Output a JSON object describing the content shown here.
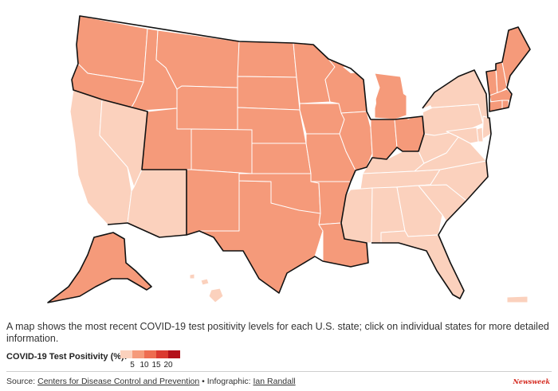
{
  "caption": "A map shows the most recent COVID-19 test positivity levels for each U.S. state; click on individual states for more detailed information.",
  "legend": {
    "title": "COVID-19 Test Positivity (%):",
    "colors": [
      "#fbd1bd",
      "#f59a7a",
      "#ee6d51",
      "#db3a30",
      "#b4111a"
    ],
    "ticks": [
      "5",
      "10",
      "15",
      "20"
    ]
  },
  "source": {
    "prefix": "Source: ",
    "cdc_link": "Centers for Disease Control and Prevention",
    "separator": " • Infographic: ",
    "author_link": "Ian Randall"
  },
  "brand": "Newsweek",
  "map": {
    "states": {
      "WA": "medium",
      "OR": "medium",
      "ID": "medium",
      "MT": "medium",
      "WY": "medium",
      "ND": "medium",
      "SD": "medium",
      "NE": "medium",
      "KS": "medium",
      "UT": "medium",
      "CO": "medium",
      "NM": "medium",
      "TX": "medium",
      "OK": "medium",
      "AR": "medium",
      "LA": "medium",
      "MO": "medium",
      "IA": "medium",
      "MN": "medium",
      "WI": "medium",
      "IL": "medium",
      "IN": "medium",
      "OH": "medium",
      "MI": "medium",
      "ME": "medium",
      "NH": "medium",
      "VT": "medium",
      "MA": "medium",
      "RI": "medium",
      "CT": "medium",
      "AK": "medium",
      "CA": "low",
      "NV": "low",
      "AZ": "low",
      "NY": "low",
      "PA": "low",
      "NJ": "low",
      "DE": "low",
      "MD": "low",
      "VA": "low",
      "WV": "low",
      "NC": "low",
      "SC": "low",
      "GA": "low",
      "FL": "low",
      "AL": "low",
      "MS": "low",
      "TN": "low",
      "KY": "low",
      "HI": "low",
      "PR": "low"
    },
    "level_colors": {
      "low": "#fbd1bd",
      "medium": "#f59a7a"
    }
  }
}
